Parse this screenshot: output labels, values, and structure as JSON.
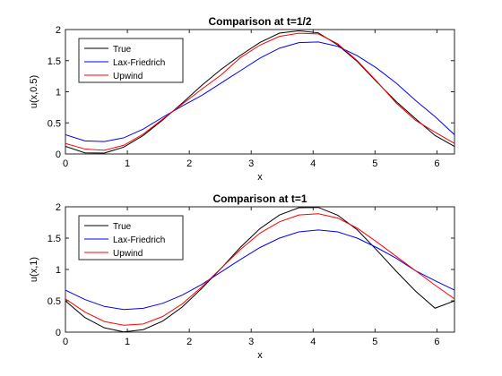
{
  "chart_data": [
    {
      "type": "line",
      "title": "Comparison at t=1/2",
      "xlabel": "x",
      "ylabel": "u(x,0.5)",
      "xlim": [
        0,
        6.2832
      ],
      "ylim": [
        0,
        2
      ],
      "xticks": [
        0,
        1,
        2,
        3,
        4,
        5,
        6
      ],
      "yticks": [
        0,
        0.5,
        1,
        1.5,
        2
      ],
      "xtick_labels": [
        "0",
        "1",
        "2",
        "3",
        "4",
        "5",
        "6"
      ],
      "ytick_labels": [
        "0",
        "0.5",
        "1",
        "1.5",
        "2"
      ],
      "legend": "top-left",
      "grid": false,
      "x": [
        0,
        0.3142,
        0.6283,
        0.9425,
        1.2566,
        1.5708,
        1.885,
        2.1991,
        2.5133,
        2.8274,
        3.1416,
        3.4558,
        3.7699,
        4.0841,
        4.3982,
        4.7124,
        5.0265,
        5.3407,
        5.6549,
        5.969,
        6.2832
      ],
      "series": [
        {
          "name": "True",
          "color": "#000000",
          "values": [
            0.122,
            0.018,
            0.014,
            0.111,
            0.298,
            0.546,
            0.817,
            1.1,
            1.359,
            1.586,
            1.792,
            1.942,
            1.981,
            1.947,
            1.752,
            1.487,
            1.159,
            0.844,
            0.567,
            0.297,
            0.122
          ]
        },
        {
          "name": "Lax-Friedrich",
          "color": "#0000ff",
          "values": [
            0.31,
            0.21,
            0.2,
            0.26,
            0.4,
            0.59,
            0.77,
            0.94,
            1.14,
            1.34,
            1.54,
            1.7,
            1.79,
            1.8,
            1.73,
            1.58,
            1.38,
            1.14,
            0.86,
            0.6,
            0.31
          ]
        },
        {
          "name": "Upwind",
          "color": "#ff0000",
          "values": [
            0.17,
            0.08,
            0.06,
            0.14,
            0.32,
            0.56,
            0.8,
            1.04,
            1.27,
            1.55,
            1.75,
            1.89,
            1.94,
            1.93,
            1.77,
            1.5,
            1.17,
            0.82,
            0.54,
            0.35,
            0.17
          ]
        }
      ]
    },
    {
      "type": "line",
      "title": "Comparison at t=1",
      "xlabel": "x",
      "ylabel": "u(x,1)",
      "xlim": [
        0,
        6.2832
      ],
      "ylim": [
        0,
        2
      ],
      "xticks": [
        0,
        1,
        2,
        3,
        4,
        5,
        6
      ],
      "yticks": [
        0,
        0.5,
        1,
        1.5,
        2
      ],
      "xtick_labels": [
        "0",
        "1",
        "2",
        "3",
        "4",
        "5",
        "6"
      ],
      "ytick_labels": [
        "0",
        "0.5",
        "1",
        "1.5",
        "2"
      ],
      "legend": "top-left",
      "grid": false,
      "x": [
        0,
        0.3142,
        0.6283,
        0.9425,
        1.2566,
        1.5708,
        1.885,
        2.1991,
        2.5133,
        2.8274,
        3.1416,
        3.4558,
        3.7699,
        4.0841,
        4.3982,
        4.7124,
        5.0265,
        5.3407,
        5.6549,
        5.969,
        6.2832
      ],
      "series": [
        {
          "name": "True",
          "color": "#000000",
          "values": [
            0.498,
            0.233,
            0.069,
            0.003,
            0.04,
            0.176,
            0.4,
            0.694,
            1.017,
            1.355,
            1.651,
            1.869,
            1.985,
            1.99,
            1.865,
            1.634,
            1.31,
            0.973,
            0.654,
            0.382,
            0.498
          ]
        },
        {
          "name": "Lax-Friedrich",
          "color": "#0000ff",
          "values": [
            0.67,
            0.52,
            0.41,
            0.36,
            0.38,
            0.46,
            0.59,
            0.76,
            0.96,
            1.16,
            1.35,
            1.5,
            1.6,
            1.63,
            1.6,
            1.5,
            1.35,
            1.18,
            0.98,
            0.82,
            0.67
          ]
        },
        {
          "name": "Upwind",
          "color": "#ff0000",
          "values": [
            0.53,
            0.32,
            0.17,
            0.11,
            0.13,
            0.25,
            0.45,
            0.72,
            1.02,
            1.32,
            1.58,
            1.76,
            1.87,
            1.89,
            1.82,
            1.66,
            1.44,
            1.21,
            0.98,
            0.75,
            0.53
          ]
        }
      ]
    }
  ]
}
